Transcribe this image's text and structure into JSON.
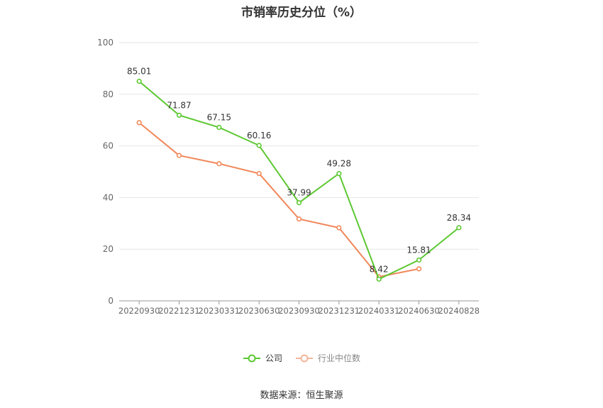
{
  "colors": {
    "company": "#5cc832",
    "industry": "#f0875a",
    "grid": "#e6e6e6",
    "axis": "#999999"
  },
  "footer": {
    "source": "数据来源：恒生聚源"
  },
  "chart_data": {
    "type": "line",
    "title": "市销率历史分位（%）",
    "categories": [
      "20220930",
      "20221231",
      "20230331",
      "20230630",
      "20230930",
      "20231231",
      "20240331",
      "20240630",
      "20240828"
    ],
    "ylim": [
      0,
      100
    ],
    "yticks": [
      0,
      20,
      40,
      60,
      80,
      100
    ],
    "grid": true,
    "legend_position": "bottom-center",
    "series": [
      {
        "name": "公司",
        "color": "#5cc832",
        "values": [
          85.01,
          71.87,
          67.15,
          60.16,
          37.99,
          49.28,
          8.42,
          15.81,
          28.34
        ],
        "labels": [
          "85.01",
          "71.87",
          "67.15",
          "60.16",
          "37.99",
          "49.28",
          "8.42",
          "15.81",
          "28.34"
        ]
      },
      {
        "name": "行业中位数",
        "color": "#f0875a",
        "values": [
          69,
          56.3,
          53.1,
          49.3,
          31.7,
          28.3,
          9.3,
          12.4,
          null
        ]
      }
    ]
  }
}
